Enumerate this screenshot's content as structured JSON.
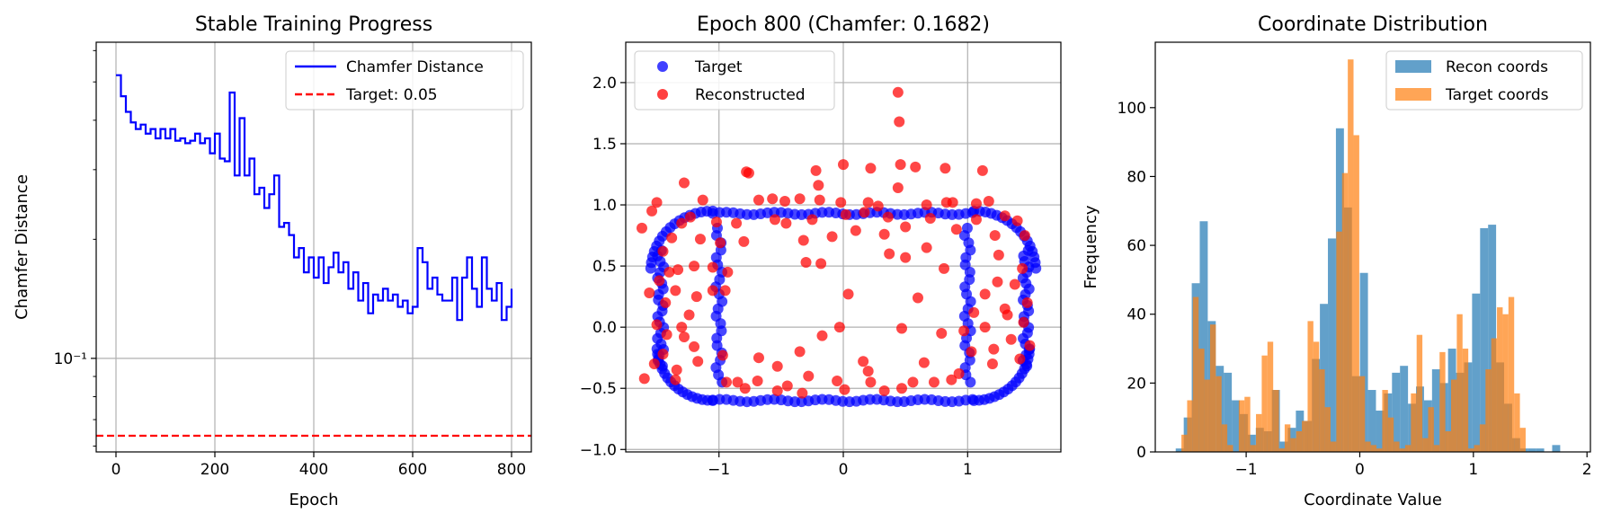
{
  "colors": {
    "line": "#0000ff",
    "target_line": "#ff0000",
    "scatter_target": "#0000ff",
    "scatter_recon": "#ff0000",
    "hist_recon": "#1f77b4",
    "hist_target": "#ff7f0e"
  },
  "chart_data": [
    {
      "type": "line",
      "title": "Stable Training Progress",
      "xlabel": "Epoch",
      "ylabel": "Chamfer Distance",
      "yscale": "log",
      "xlim": [
        -40,
        840
      ],
      "ylim": [
        0.058,
        0.63
      ],
      "x_ticks": [
        0,
        200,
        400,
        600,
        800
      ],
      "x_tick_labels": [
        "0",
        "200",
        "400",
        "600",
        "800"
      ],
      "y_ticks": [
        0.1
      ],
      "y_tick_labels": [
        "10⁻¹"
      ],
      "grid": true,
      "legend": {
        "position": "top-right",
        "entries": [
          "Chamfer Distance",
          "Target: 0.05"
        ]
      },
      "series": [
        {
          "name": "Chamfer Distance",
          "x": [
            0,
            10,
            20,
            30,
            40,
            50,
            60,
            70,
            80,
            90,
            100,
            110,
            120,
            130,
            140,
            150,
            160,
            170,
            180,
            190,
            200,
            210,
            220,
            230,
            240,
            250,
            260,
            270,
            280,
            290,
            300,
            310,
            320,
            330,
            340,
            350,
            360,
            370,
            380,
            390,
            400,
            410,
            420,
            430,
            440,
            450,
            460,
            470,
            480,
            490,
            500,
            510,
            520,
            530,
            540,
            550,
            560,
            570,
            580,
            590,
            600,
            610,
            620,
            630,
            640,
            650,
            660,
            670,
            680,
            690,
            700,
            710,
            720,
            730,
            740,
            750,
            760,
            770,
            780,
            790,
            800
          ],
          "values": [
            0.52,
            0.46,
            0.42,
            0.395,
            0.38,
            0.39,
            0.37,
            0.38,
            0.36,
            0.38,
            0.36,
            0.38,
            0.355,
            0.36,
            0.35,
            0.355,
            0.37,
            0.35,
            0.36,
            0.33,
            0.37,
            0.32,
            0.315,
            0.47,
            0.29,
            0.405,
            0.29,
            0.32,
            0.26,
            0.27,
            0.24,
            0.26,
            0.29,
            0.215,
            0.22,
            0.205,
            0.18,
            0.19,
            0.165,
            0.18,
            0.16,
            0.18,
            0.155,
            0.17,
            0.185,
            0.165,
            0.175,
            0.15,
            0.165,
            0.14,
            0.155,
            0.13,
            0.145,
            0.14,
            0.15,
            0.14,
            0.145,
            0.135,
            0.14,
            0.13,
            0.135,
            0.19,
            0.175,
            0.15,
            0.16,
            0.145,
            0.14,
            0.14,
            0.16,
            0.125,
            0.16,
            0.18,
            0.15,
            0.135,
            0.18,
            0.15,
            0.14,
            0.155,
            0.125,
            0.135,
            0.15
          ]
        },
        {
          "name": "Target: 0.05",
          "value": 0.05,
          "style": "dashed"
        }
      ]
    },
    {
      "type": "scatter",
      "title": "Epoch 800 (Chamfer: 0.1682)",
      "xlim": [
        -1.75,
        1.75
      ],
      "ylim": [
        -1.02,
        2.33
      ],
      "x_ticks": [
        -1,
        0,
        1
      ],
      "x_tick_labels": [
        "−1",
        "0",
        "1"
      ],
      "y_ticks": [
        -1.0,
        -0.5,
        0.0,
        0.5,
        1.0,
        1.5,
        2.0
      ],
      "y_tick_labels": [
        "−1.0",
        "−0.5",
        "0.0",
        "0.5",
        "1.0",
        "1.5",
        "2.0"
      ],
      "grid": true,
      "legend": {
        "position": "top-left",
        "entries": [
          "Target",
          "Reconstructed"
        ]
      },
      "series": [
        {
          "name": "Target",
          "shape": "rounded-rectangle ring",
          "x_range": [
            -1.55,
            1.55
          ],
          "y_range": [
            -0.6,
            0.93
          ]
        },
        {
          "name": "Reconstructed",
          "points": [
            [
              0.44,
              1.92
            ],
            [
              0.45,
              1.68
            ],
            [
              -0.78,
              1.27
            ],
            [
              -0.76,
              1.26
            ],
            [
              -0.22,
              1.28
            ],
            [
              0.0,
              1.33
            ],
            [
              0.22,
              1.3
            ],
            [
              0.46,
              1.33
            ],
            [
              0.58,
              1.31
            ],
            [
              0.82,
              1.3
            ],
            [
              1.12,
              1.28
            ],
            [
              -1.28,
              1.18
            ],
            [
              -0.2,
              1.16
            ],
            [
              0.44,
              1.14
            ],
            [
              -1.5,
              1.02
            ],
            [
              -1.13,
              1.04
            ],
            [
              -0.68,
              1.04
            ],
            [
              -0.57,
              1.05
            ],
            [
              -0.47,
              1.03
            ],
            [
              -0.35,
              1.05
            ],
            [
              -0.19,
              1.04
            ],
            [
              -0.02,
              1.02
            ],
            [
              0.2,
              1.02
            ],
            [
              0.28,
              0.99
            ],
            [
              0.67,
              1.0
            ],
            [
              0.83,
              1.02
            ],
            [
              0.88,
              1.02
            ],
            [
              1.07,
              1.01
            ],
            [
              1.17,
              1.03
            ],
            [
              -1.62,
              0.81
            ],
            [
              -1.54,
              0.95
            ],
            [
              -1.23,
              0.9
            ],
            [
              -1.02,
              0.86
            ],
            [
              -0.86,
              0.85
            ],
            [
              -0.55,
              0.88
            ],
            [
              -0.46,
              0.85
            ],
            [
              -0.25,
              0.88
            ],
            [
              0.02,
              0.92
            ],
            [
              0.17,
              0.94
            ],
            [
              0.36,
              0.9
            ],
            [
              0.7,
              0.89
            ],
            [
              1.07,
              0.88
            ],
            [
              1.3,
              0.91
            ],
            [
              1.4,
              0.87
            ],
            [
              -1.38,
              0.73
            ],
            [
              -1.15,
              0.72
            ],
            [
              -0.99,
              0.69
            ],
            [
              -0.8,
              0.7
            ],
            [
              -0.32,
              0.71
            ],
            [
              0.1,
              0.79
            ],
            [
              0.33,
              0.76
            ],
            [
              0.5,
              0.82
            ],
            [
              0.91,
              0.8
            ],
            [
              1.22,
              0.75
            ],
            [
              1.46,
              0.75
            ],
            [
              -1.4,
              0.45
            ],
            [
              -1.33,
              0.47
            ],
            [
              -1.2,
              0.5
            ],
            [
              -1.05,
              0.49
            ],
            [
              -0.93,
              0.45
            ],
            [
              -0.3,
              0.53
            ],
            [
              -0.18,
              0.52
            ],
            [
              -0.09,
              0.74
            ],
            [
              0.37,
              0.6
            ],
            [
              0.5,
              0.57
            ],
            [
              0.67,
              0.65
            ],
            [
              0.81,
              0.48
            ],
            [
              1.25,
              0.59
            ],
            [
              1.44,
              0.48
            ],
            [
              -1.56,
              0.28
            ],
            [
              -1.43,
              0.2
            ],
            [
              -1.18,
              0.25
            ],
            [
              -1.05,
              0.3
            ],
            [
              -0.95,
              0.3
            ],
            [
              0.04,
              0.27
            ],
            [
              0.6,
              0.24
            ],
            [
              1.14,
              0.27
            ],
            [
              1.24,
              0.37
            ],
            [
              -1.5,
              0.02
            ],
            [
              -1.42,
              -0.06
            ],
            [
              -1.3,
              0.0
            ],
            [
              -1.24,
              0.1
            ],
            [
              -1.2,
              -0.16
            ],
            [
              -0.17,
              -0.07
            ],
            [
              -0.03,
              0.0
            ],
            [
              0.47,
              -0.01
            ],
            [
              0.79,
              -0.05
            ],
            [
              0.97,
              -0.03
            ],
            [
              1.14,
              0.0
            ],
            [
              1.32,
              0.1
            ],
            [
              1.45,
              0.04
            ],
            [
              -1.52,
              -0.3
            ],
            [
              -1.45,
              -0.22
            ],
            [
              -1.34,
              -0.35
            ],
            [
              -1.17,
              -0.28
            ],
            [
              -0.97,
              -0.23
            ],
            [
              -0.68,
              -0.25
            ],
            [
              -0.53,
              -0.32
            ],
            [
              -0.35,
              -0.2
            ],
            [
              0.16,
              -0.28
            ],
            [
              0.2,
              -0.36
            ],
            [
              0.65,
              -0.29
            ],
            [
              0.93,
              -0.38
            ],
            [
              1.03,
              -0.2
            ],
            [
              1.21,
              -0.18
            ],
            [
              1.42,
              -0.26
            ],
            [
              -1.6,
              -0.42
            ],
            [
              -1.35,
              -0.43
            ],
            [
              -0.94,
              -0.45
            ],
            [
              -0.85,
              -0.45
            ],
            [
              -0.69,
              -0.44
            ],
            [
              -0.53,
              -0.52
            ],
            [
              -0.45,
              -0.48
            ],
            [
              -0.28,
              -0.4
            ],
            [
              -0.05,
              -0.44
            ],
            [
              0.22,
              -0.45
            ],
            [
              0.47,
              -0.5
            ],
            [
              0.56,
              -0.45
            ],
            [
              0.73,
              -0.45
            ],
            [
              0.87,
              -0.43
            ],
            [
              -0.79,
              -0.5
            ],
            [
              -0.33,
              -0.54
            ],
            [
              0.01,
              -0.51
            ],
            [
              0.33,
              -0.52
            ],
            [
              -1.45,
              0.62
            ],
            [
              -1.3,
              0.85
            ],
            [
              -1.48,
              0.38
            ],
            [
              -1.35,
              0.3
            ],
            [
              -1.28,
              -0.08
            ],
            [
              1.35,
              -0.1
            ],
            [
              1.3,
              0.15
            ],
            [
              1.38,
              0.35
            ],
            [
              1.2,
              -0.3
            ],
            [
              1.05,
              0.12
            ],
            [
              1.5,
              -0.15
            ],
            [
              1.48,
              0.2
            ]
          ]
        }
      ]
    },
    {
      "type": "bar",
      "subtype": "histogram",
      "title": "Coordinate Distribution",
      "xlabel": "Coordinate Value",
      "ylabel": "Frequency",
      "xlim": [
        -1.8,
        2.03
      ],
      "ylim": [
        0,
        119
      ],
      "x_ticks": [
        -1,
        0,
        1,
        2
      ],
      "x_tick_labels": [
        "−1",
        "0",
        "1",
        "2"
      ],
      "y_ticks": [
        0,
        20,
        40,
        60,
        80,
        100
      ],
      "y_tick_labels": [
        "0",
        "20",
        "40",
        "60",
        "80",
        "100"
      ],
      "legend": {
        "position": "top-right",
        "entries": [
          "Recon coords",
          "Target coords"
        ]
      },
      "series": [
        {
          "name": "Recon coords",
          "bin_start": -1.62,
          "bin_width": 0.0705,
          "values": [
            1,
            10,
            49,
            67,
            38,
            25,
            23,
            15,
            11,
            5,
            7,
            6,
            18,
            3,
            7,
            12,
            9,
            27,
            43,
            62,
            94,
            71,
            22,
            52,
            18,
            12,
            17,
            23,
            25,
            14,
            19,
            15,
            24,
            20,
            30,
            23,
            26,
            46,
            65,
            66,
            26,
            14,
            4,
            1,
            1,
            1,
            0,
            2
          ]
        },
        {
          "name": "Target coords",
          "bin_start": -1.57,
          "bin_width": 0.0505,
          "values": [
            5,
            15,
            45,
            30,
            21,
            37,
            22,
            8,
            2,
            0,
            15,
            16,
            2,
            11,
            28,
            32,
            18,
            1,
            8,
            4,
            6,
            9,
            38,
            32,
            24,
            13,
            3,
            64,
            81,
            114,
            92,
            22,
            3,
            2,
            1,
            18,
            10,
            3,
            1,
            2,
            17,
            34,
            4,
            13,
            2,
            29,
            6,
            21,
            40,
            30,
            1,
            2,
            8,
            24,
            33,
            42,
            40,
            45,
            17,
            7
          ]
        }
      ]
    }
  ]
}
